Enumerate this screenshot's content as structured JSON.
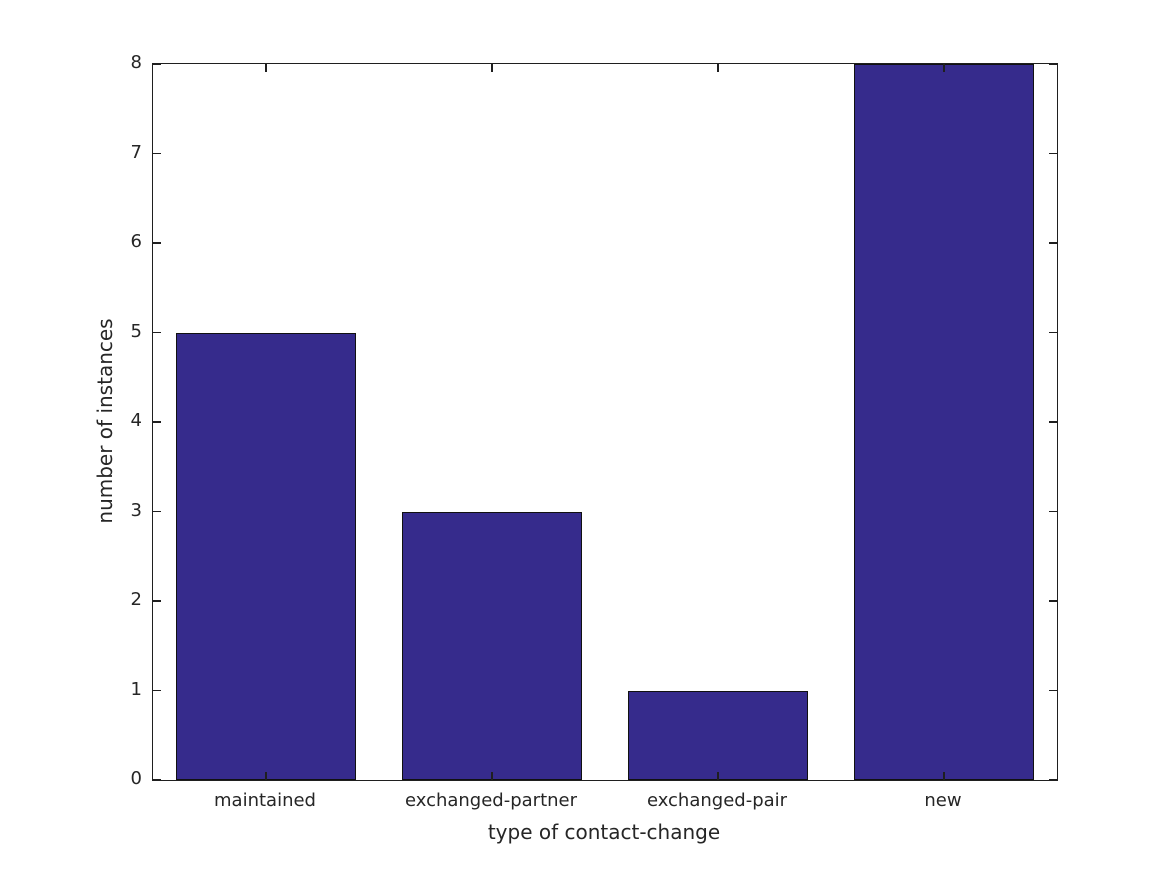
{
  "figure": {
    "background": "#ffffff"
  },
  "chart_data": {
    "type": "bar",
    "title": "",
    "categories": [
      "maintained",
      "exchanged-partner",
      "exchanged-pair",
      "new"
    ],
    "values": [
      5,
      3,
      1,
      8
    ],
    "xlabel": "type of contact-change",
    "ylabel": "number of instances",
    "ylim": [
      0,
      8
    ],
    "yticks": [
      0,
      1,
      2,
      3,
      4,
      5,
      6,
      7,
      8
    ],
    "ytick_labels": [
      "0",
      "1",
      "2",
      "3",
      "4",
      "5",
      "6",
      "7",
      "8"
    ],
    "bar_color": "#362b8c",
    "bar_edge_color": "#111111",
    "axis_color": "#1f1f1f",
    "text_color": "#262626",
    "bar_width_fraction": 0.8,
    "grid": false,
    "tick_direction": "in",
    "ticks_mirrored_on_top_and_right": true,
    "legend": null
  }
}
